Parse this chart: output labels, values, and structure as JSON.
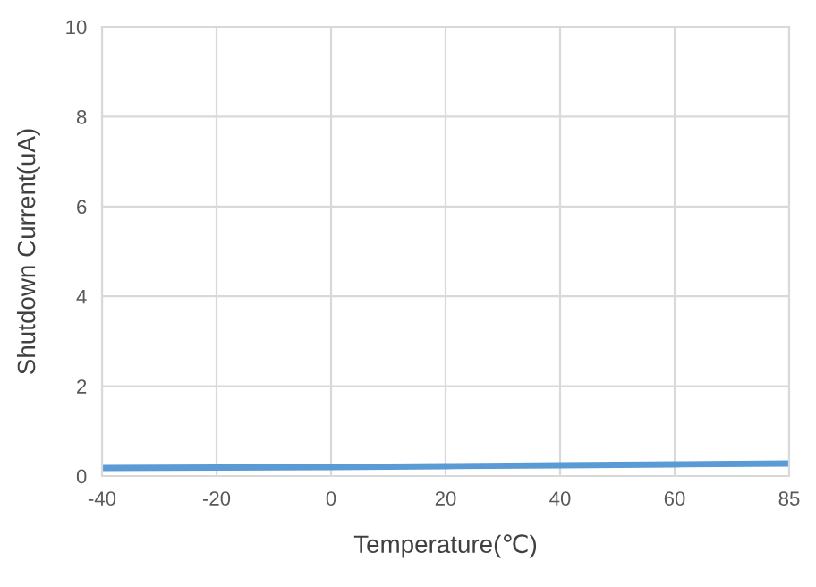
{
  "chart_data": {
    "type": "line",
    "xlabel": "Temperature(℃)",
    "ylabel": "Shutdown Current(uA)",
    "categories": [
      "-40",
      "-20",
      "0",
      "20",
      "40",
      "60",
      "85"
    ],
    "series": [
      {
        "color": "#5b9bd5",
        "values": [
          0.18,
          0.19,
          0.2,
          0.22,
          0.24,
          0.26,
          0.28
        ]
      }
    ],
    "ylim": [
      0,
      10
    ],
    "yticks": [
      0,
      2,
      4,
      6,
      8,
      10
    ],
    "grid": true,
    "legend": false,
    "marker": "none",
    "line_style": "solid"
  }
}
